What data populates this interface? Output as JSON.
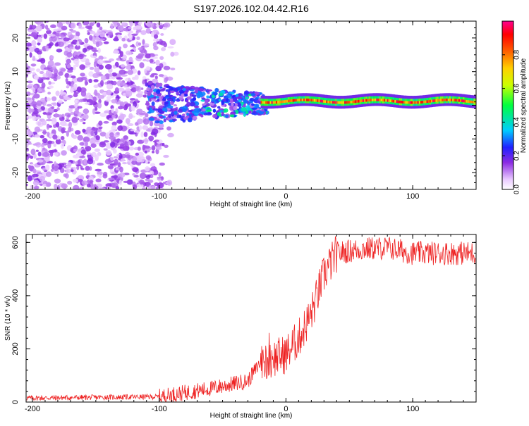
{
  "chart_data": [
    {
      "type": "heatmap",
      "title": "S197.2026.102.04.42.R16",
      "xlabel": "Height of straight line (km)",
      "ylabel": "Frequency (Hz)",
      "xlim": [
        -205,
        150
      ],
      "ylim": [
        -25,
        25
      ],
      "xticks": [
        "-200",
        "-100",
        "0",
        "100"
      ],
      "yticks": [
        "20",
        "10",
        "0",
        "-10",
        "-20"
      ],
      "colorbar": {
        "label": "Normalized spectral amplitude",
        "range": [
          0,
          1
        ],
        "ticks": [
          "0.0",
          "0.2",
          "0.4",
          "0.6",
          "0.8"
        ]
      },
      "description_regions": [
        {
          "x": [
            -205,
            -110
          ],
          "freq": [
            -25,
            25
          ],
          "amplitude": "low, scattered"
        },
        {
          "x": [
            -110,
            -20
          ],
          "freq": [
            -5,
            6
          ],
          "amplitude": "low to moderate"
        },
        {
          "x": [
            -20,
            150
          ],
          "freq": [
            0,
            3
          ],
          "amplitude": "high, narrow band near 1 Hz"
        }
      ]
    },
    {
      "type": "line",
      "xlabel": "Height of straight line (km)",
      "ylabel": "SNR (10 * v/v)",
      "xlim": [
        -205,
        150
      ],
      "ylim": [
        0,
        630
      ],
      "xticks": [
        "-200",
        "-100",
        "0",
        "100"
      ],
      "yticks": [
        "600",
        "400",
        "200",
        "0"
      ],
      "series": [
        {
          "name": "SNR",
          "color": "#ee2222",
          "trend_points": [
            {
              "x": -205,
              "y": 15
            },
            {
              "x": -100,
              "y": 20
            },
            {
              "x": -60,
              "y": 50
            },
            {
              "x": -30,
              "y": 80
            },
            {
              "x": -20,
              "y": 150
            },
            {
              "x": 0,
              "y": 180
            },
            {
              "x": 10,
              "y": 240
            },
            {
              "x": 20,
              "y": 330
            },
            {
              "x": 30,
              "y": 480
            },
            {
              "x": 40,
              "y": 560
            },
            {
              "x": 60,
              "y": 575
            },
            {
              "x": 80,
              "y": 580
            },
            {
              "x": 100,
              "y": 560
            },
            {
              "x": 150,
              "y": 560
            }
          ]
        }
      ]
    }
  ]
}
